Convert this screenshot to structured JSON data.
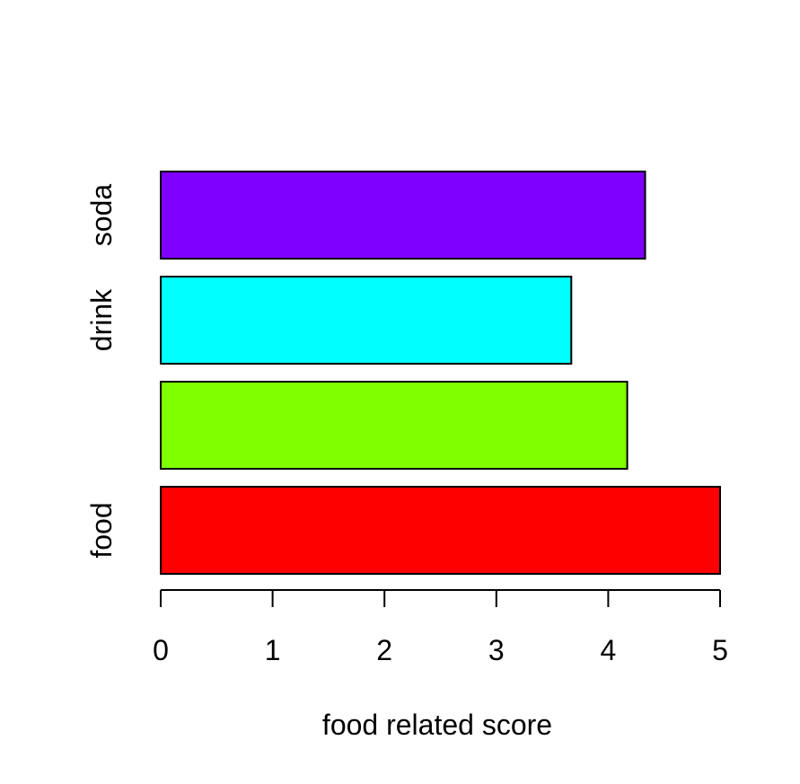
{
  "chart_data": {
    "type": "bar",
    "orientation": "horizontal",
    "categories": [
      "food",
      "",
      "drink",
      "soda"
    ],
    "values": [
      5.0,
      4.17,
      3.67,
      4.33
    ],
    "colors": [
      "#ff0000",
      "#80ff00",
      "#00ffff",
      "#8000ff"
    ],
    "xlabel": "food related score",
    "ylabel": "",
    "title": "",
    "xlim": [
      0,
      5
    ],
    "xticks": [
      0,
      1,
      2,
      3,
      4,
      5
    ],
    "grid": false,
    "legend": "none"
  }
}
